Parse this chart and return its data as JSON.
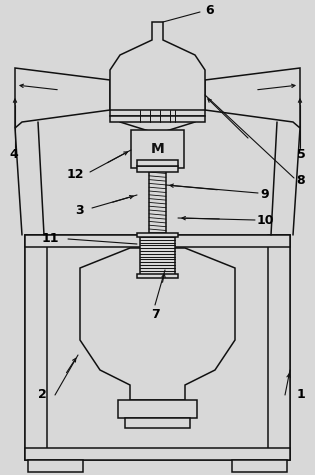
{
  "bg_color": "#d8d8d8",
  "line_color": "#111111",
  "lw": 1.1,
  "fig_w": 3.15,
  "fig_h": 4.75
}
